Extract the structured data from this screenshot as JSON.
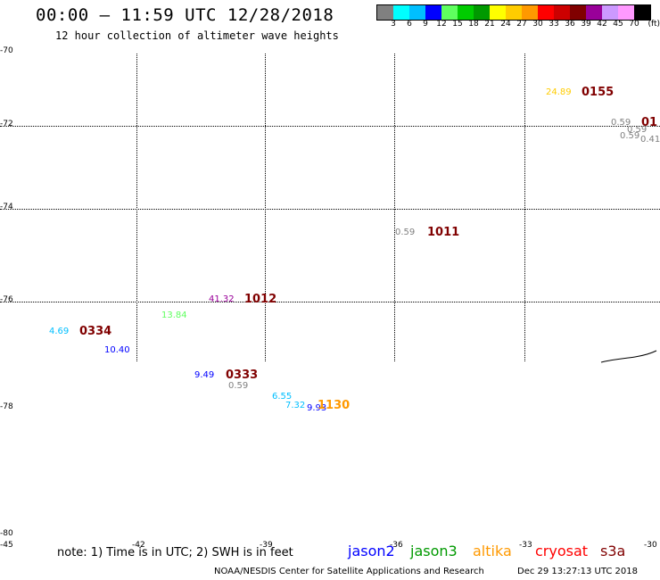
{
  "header": {
    "title": "00:00 – 11:59 UTC 12/28/2018",
    "subtitle": "12 hour collection of altimeter wave heights"
  },
  "colorbar": {
    "colors": [
      "#808080",
      "#00ffff",
      "#00bfff",
      "#0000ff",
      "#5fff5f",
      "#00cc00",
      "#009900",
      "#ffff00",
      "#ffcc00",
      "#ff9900",
      "#ff0000",
      "#cc0000",
      "#800000",
      "#990099",
      "#cc99ff",
      "#ff99ff",
      "#000000"
    ],
    "labels": [
      "3",
      "6",
      "9",
      "12",
      "15",
      "18",
      "21",
      "24",
      "27",
      "30",
      "33",
      "36",
      "39",
      "42",
      "45",
      "70"
    ],
    "unit": "(ft)"
  },
  "lat_labels": [
    "-70",
    "-72",
    "-74",
    "-76",
    "-78",
    "-80"
  ],
  "lon_labels": [
    "-45",
    "-42",
    "-39",
    "-36",
    "-33",
    "-30"
  ],
  "observations": [
    {
      "text": "24.89",
      "color": "#ffcc00"
    },
    {
      "text": "0155",
      "color": "#800000"
    },
    {
      "text": "0.59",
      "color": "#808080"
    },
    {
      "text": "0.59",
      "color": "#808080"
    },
    {
      "text": "0.59",
      "color": "#808080"
    },
    {
      "text": "0.41",
      "color": "#808080"
    },
    {
      "text": "01",
      "color": "#800000"
    },
    {
      "text": "0.59",
      "color": "#808080"
    },
    {
      "text": "1011",
      "color": "#800000"
    },
    {
      "text": "41.32",
      "color": "#990099"
    },
    {
      "text": "1012",
      "color": "#800000"
    },
    {
      "text": "13.84",
      "color": "#5fff5f"
    },
    {
      "text": "4.69",
      "color": "#00bfff"
    },
    {
      "text": "0334",
      "color": "#800000"
    },
    {
      "text": "10.40",
      "color": "#0000ff"
    },
    {
      "text": "9.49",
      "color": "#0000ff"
    },
    {
      "text": "0333",
      "color": "#800000"
    },
    {
      "text": "0.59",
      "color": "#808080"
    },
    {
      "text": "6.55",
      "color": "#00bfff"
    },
    {
      "text": "7.32",
      "color": "#00bfff"
    },
    {
      "text": "9.93",
      "color": "#0000ff"
    },
    {
      "text": "1130",
      "color": "#ff9900"
    }
  ],
  "footer": {
    "note": "note: 1) Time is in UTC; 2) SWH is in feet",
    "satellites": [
      {
        "name": "jason2",
        "color": "#0000ff"
      },
      {
        "name": "jason3",
        "color": "#009900"
      },
      {
        "name": "altika",
        "color": "#ff9900"
      },
      {
        "name": "cryosat",
        "color": "#ff0000"
      },
      {
        "name": "s3a",
        "color": "#800000"
      }
    ],
    "credit": "NOAA/NESDIS Center for Satellite Applications and Research",
    "timestamp": "Dec 29 13:27:13 UTC 2018"
  }
}
